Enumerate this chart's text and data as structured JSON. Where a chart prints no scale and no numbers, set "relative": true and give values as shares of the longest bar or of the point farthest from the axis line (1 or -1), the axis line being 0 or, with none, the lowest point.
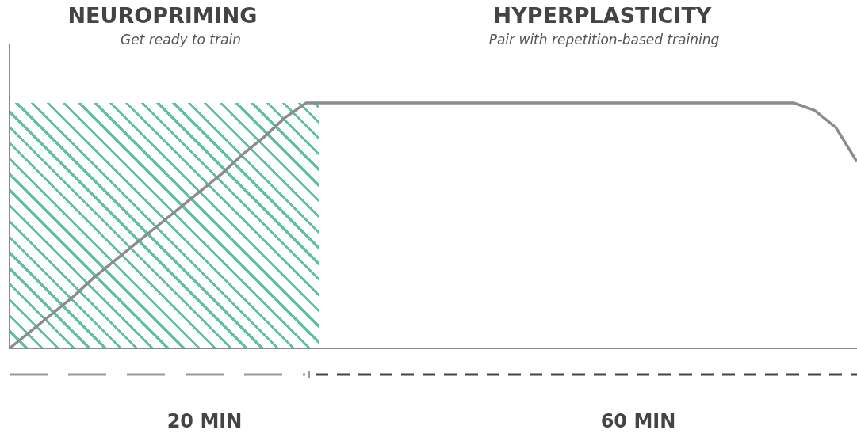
{
  "chart_data": {
    "type": "line",
    "relative": true,
    "categories": [
      null,
      null,
      null,
      null,
      null,
      null,
      null,
      null,
      null,
      null,
      null,
      null,
      null,
      null,
      null,
      null,
      null,
      null,
      null,
      null,
      null,
      null,
      null,
      null,
      null,
      null,
      null,
      null,
      null,
      null,
      null,
      null,
      null,
      null,
      null,
      null,
      null,
      null,
      null,
      null,
      null
    ],
    "series": [
      {
        "color": "#8c8c8c",
        "values": [
          0,
          0.07,
          0.14,
          0.21,
          0.29,
          0.36,
          0.43,
          0.5,
          0.57,
          0.64,
          0.71,
          0.79,
          0.86,
          0.94,
          1,
          1,
          1,
          1,
          1,
          1,
          1,
          1,
          1,
          1,
          1,
          1,
          1,
          1,
          1,
          1,
          1,
          1,
          1,
          1,
          1,
          1,
          1,
          1,
          0.97,
          0.9,
          0.76
        ]
      }
    ],
    "annotations": [
      "NEUROPRIMING",
      "Get ready to train",
      "HYPERPLASTICITY",
      "Pair with repetition-based training",
      "20 MIN",
      "60 MIN"
    ],
    "marker": "none",
    "legend": false,
    "tick_labels": false
  }
}
